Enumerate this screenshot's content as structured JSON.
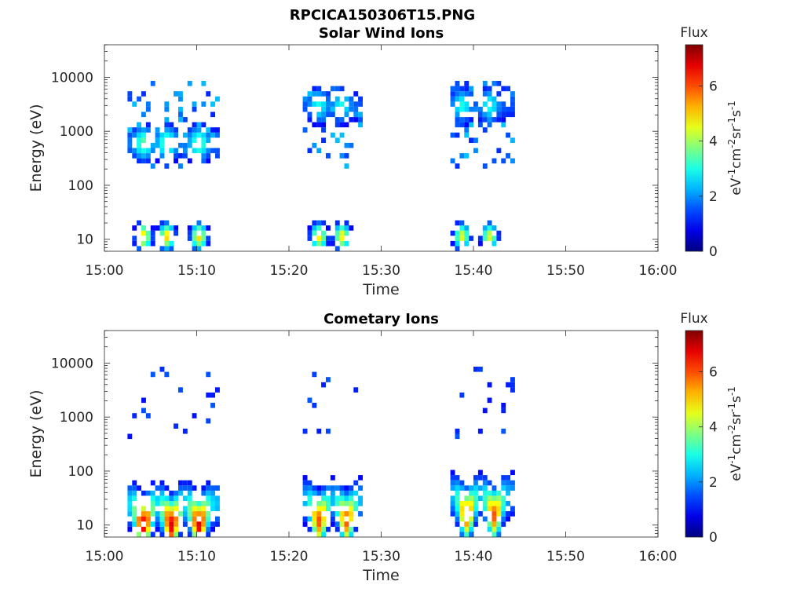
{
  "figure_title": "RPCICA150306T15.PNG",
  "colors": {
    "axis": "#262626",
    "background": "#ffffff"
  },
  "chart_data": [
    {
      "type": "heatmap",
      "title": "Solar Wind Ions",
      "xlabel": "Time",
      "ylabel": "Energy (eV)",
      "x_range": [
        "15:00",
        "16:00"
      ],
      "x_ticks": [
        "15:00",
        "15:10",
        "15:20",
        "15:30",
        "15:40",
        "15:50",
        "16:00"
      ],
      "y_scale": "log",
      "y_range": [
        6,
        40000
      ],
      "y_ticks": [
        10,
        100,
        1000,
        10000
      ],
      "y_tick_labels": [
        "10",
        "100",
        "1000",
        "10000"
      ],
      "colorbar": {
        "label": "Flux",
        "unit_label": "eV-1cm-2sr-1s-1",
        "colormap": "jet",
        "range": [
          0,
          7.5
        ],
        "ticks": [
          0,
          2,
          4,
          6
        ]
      },
      "bursts": [
        {
          "start": "15:02:30",
          "end": "15:12:30",
          "peak_energy_eV": 600,
          "peak_flux": 3.5,
          "low_energy_peak_flux": 5.0,
          "hot_columns": [
            "15:04:00",
            "15:06:30",
            "15:10:00"
          ]
        },
        {
          "start": "15:21:30",
          "end": "15:28:00",
          "peak_energy_eV": 3000,
          "peak_flux": 3.0,
          "low_energy_peak_flux": 4.8,
          "hot_columns": [
            "15:23:00",
            "15:25:30"
          ]
        },
        {
          "start": "15:37:30",
          "end": "15:44:30",
          "peak_energy_eV": 3000,
          "peak_flux": 3.0,
          "low_energy_peak_flux": 4.5,
          "hot_columns": [
            "15:38:30",
            "15:41:30"
          ]
        }
      ]
    },
    {
      "type": "heatmap",
      "title": "Cometary Ions",
      "xlabel": "Time",
      "ylabel": "Energy (eV)",
      "x_range": [
        "15:00",
        "16:00"
      ],
      "x_ticks": [
        "15:00",
        "15:10",
        "15:20",
        "15:30",
        "15:40",
        "15:50",
        "16:00"
      ],
      "y_scale": "log",
      "y_range": [
        6,
        40000
      ],
      "y_ticks": [
        10,
        100,
        1000,
        10000
      ],
      "y_tick_labels": [
        "10",
        "100",
        "1000",
        "10000"
      ],
      "colorbar": {
        "label": "Flux",
        "unit_label": "eV-1cm-2sr-1s-1",
        "colormap": "jet",
        "range": [
          0,
          7.5
        ],
        "ticks": [
          0,
          2,
          4,
          6
        ]
      },
      "bursts": [
        {
          "start": "15:02:30",
          "end": "15:12:30",
          "peak_energy_eV": 10,
          "peak_flux": 6.8,
          "hot_columns": [
            "15:04:00",
            "15:07:00",
            "15:10:00"
          ]
        },
        {
          "start": "15:21:30",
          "end": "15:28:00",
          "peak_energy_eV": 12,
          "peak_flux": 6.0,
          "hot_columns": [
            "15:23:00",
            "15:26:00"
          ]
        },
        {
          "start": "15:37:30",
          "end": "15:44:30",
          "peak_energy_eV": 15,
          "peak_flux": 6.0,
          "hot_columns": [
            "15:39:00",
            "15:42:00"
          ]
        }
      ]
    }
  ]
}
